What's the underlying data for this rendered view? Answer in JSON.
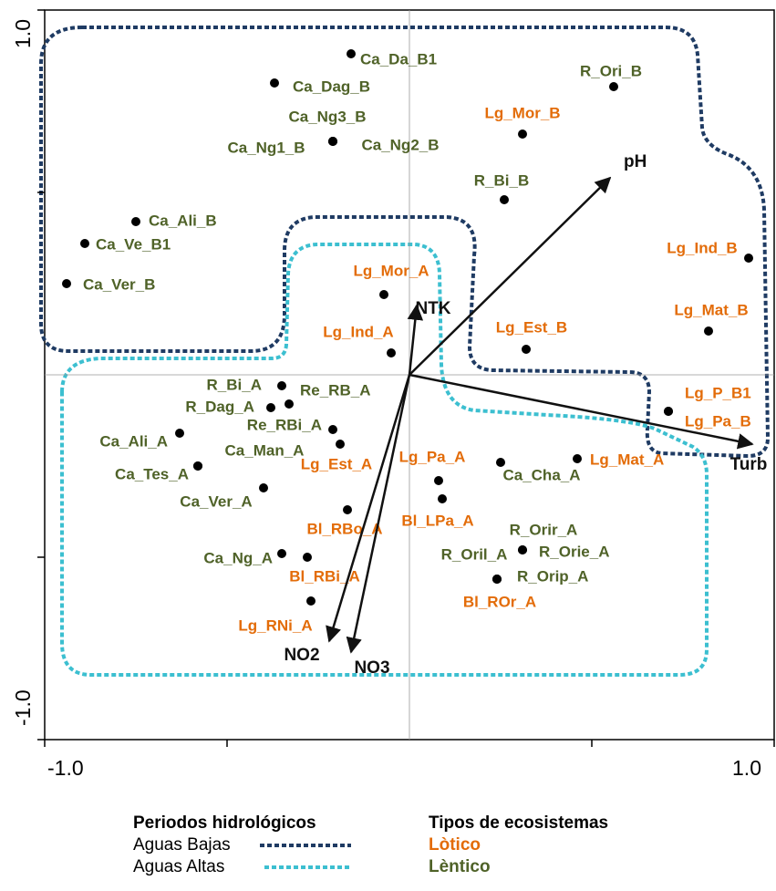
{
  "chart_data": {
    "type": "scatter",
    "xlim": [
      -1,
      1
    ],
    "ylim": [
      -1,
      1
    ],
    "xticks": [
      {
        "value": -1,
        "label": "-1.0"
      },
      {
        "value": 1,
        "label": "1.0"
      }
    ],
    "yticks": [
      {
        "value": -1,
        "label": "-1.0"
      },
      {
        "value": 1,
        "label": "1.0"
      }
    ],
    "minor_ticks": [
      -0.5,
      0.5
    ],
    "point_color": "#000000",
    "series": [
      {
        "name": "Lòtico",
        "color": "#e36c09",
        "labels": [
          "Lg_Mor_B",
          "Lg_Ind_B",
          "Lg_Mor_A",
          "Lg_Mat_B",
          "Lg_Ind_A",
          "Lg_Est_B",
          "Lg_P_B1",
          "Lg_Pa_B",
          "Lg_Est_A",
          "Lg_Mat_A",
          "Lg_Pa_A",
          "Bl_LPa_A",
          "Bl_RBo_A",
          "Bl_RBi_A",
          "Bl_ROr_A",
          "Lg_RNi_A"
        ],
        "x": [
          0.31,
          0.93,
          -0.07,
          0.82,
          -0.05,
          0.32,
          0.71,
          0.71,
          -0.19,
          0.46,
          0.08,
          0.09,
          -0.17,
          -0.28,
          0.24,
          -0.27
        ],
        "values": [
          0.66,
          0.32,
          0.22,
          0.12,
          0.06,
          0.07,
          -0.1,
          -0.1,
          -0.19,
          -0.23,
          -0.29,
          -0.34,
          -0.37,
          -0.5,
          -0.56,
          -0.62
        ]
      },
      {
        "name": "Lèntico",
        "color": "#4f6228",
        "labels": [
          "Ca_Da_B1",
          "Ca_Dag_B",
          "Ca_Ng3_B",
          "Ca_Ng1_B",
          "Ca_Ng2_B",
          "R_Ori_B",
          "R_Bi_B",
          "Ca_Ali_B",
          "Ca_Ve_B1",
          "Ca_Ver_B",
          "R_Bi_A",
          "Re_RB_A",
          "R_Dag_A",
          "Re_RBi_A",
          "Ca_Ali_A",
          "Ca_Man_A",
          "Ca_Tes_A",
          "Ca_Ver_A",
          "Ca_Cha_A",
          "R_Orir_A",
          "R_Orie_A",
          "Ca_Ng_A",
          "R_Oril_A",
          "R_Orip_A"
        ],
        "x": [
          -0.16,
          -0.37,
          -0.21,
          -0.21,
          -0.21,
          0.56,
          0.26,
          -0.75,
          -0.89,
          -0.94,
          -0.35,
          -0.33,
          -0.38,
          -0.21,
          -0.63,
          -0.58,
          -0.58,
          -0.4,
          0.25,
          0.31,
          0.31,
          -0.35,
          0.24,
          0.24
        ],
        "values": [
          0.88,
          0.8,
          0.64,
          0.64,
          0.64,
          0.79,
          0.48,
          0.42,
          0.36,
          0.25,
          -0.03,
          -0.08,
          -0.09,
          -0.15,
          -0.16,
          -0.25,
          -0.25,
          -0.31,
          -0.24,
          -0.48,
          -0.48,
          -0.49,
          -0.56,
          -0.56
        ]
      }
    ],
    "vectors": [
      {
        "name": "pH",
        "x": 0.55,
        "y": 0.54
      },
      {
        "name": "NTK",
        "x": 0.02,
        "y": 0.19
      },
      {
        "name": "Turb",
        "x": 0.94,
        "y": -0.19
      },
      {
        "name": "NO2",
        "x": -0.22,
        "y": -0.73
      },
      {
        "name": "NO3",
        "x": -0.16,
        "y": -0.76
      }
    ],
    "hulls": [
      {
        "name": "Aguas Bajas",
        "color": "#1f3b63"
      },
      {
        "name": "Aguas Altas",
        "color": "#3cbfd0"
      }
    ],
    "legend_titles": {
      "periods": "Periodos hidrológicos",
      "types": "Tipos de ecosistemas"
    }
  }
}
